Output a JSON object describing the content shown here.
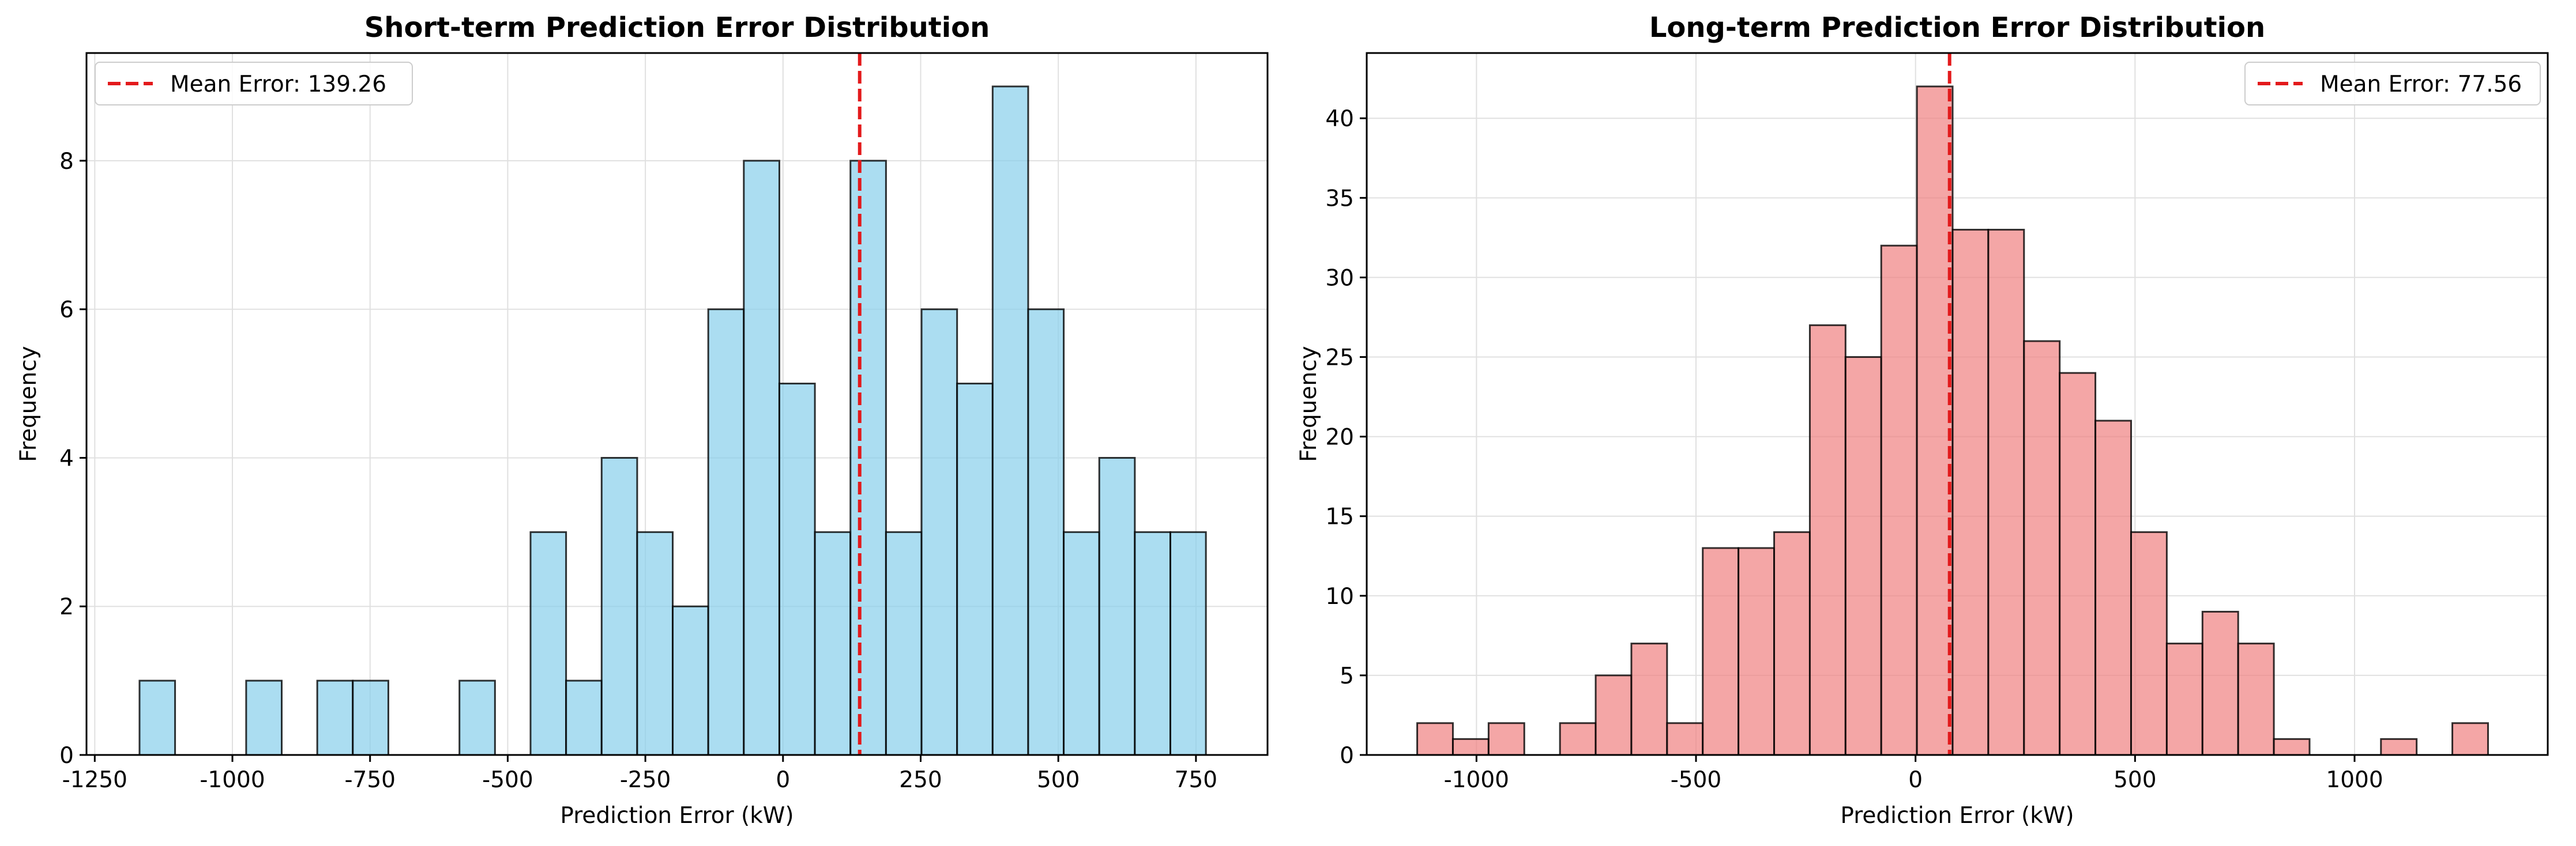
{
  "chart_data": [
    {
      "type": "bar",
      "subtype": "histogram",
      "title": "Short-term Prediction Error Distribution",
      "xlabel": "Prediction Error (kW)",
      "ylabel": "Frequency",
      "xlim": [
        -1265,
        880
      ],
      "ylim": [
        0,
        9.45
      ],
      "xticks": [
        -1250,
        -1000,
        -750,
        -500,
        -250,
        0,
        250,
        500,
        750
      ],
      "xtick_labels": [
        "-1250",
        "-1000",
        "-750",
        "-500",
        "-250",
        "0",
        "250",
        "500",
        "750"
      ],
      "yticks": [
        0,
        2,
        4,
        6,
        8
      ],
      "ytick_labels": [
        "0",
        "2",
        "4",
        "6",
        "8"
      ],
      "grid": true,
      "bar_color": "#87CEEB",
      "edge_color": "#000000",
      "bin_start": -1168.7,
      "bin_width": 64.56,
      "values": [
        1,
        0,
        0,
        1,
        0,
        1,
        1,
        0,
        0,
        1,
        0,
        3,
        1,
        4,
        3,
        2,
        6,
        8,
        5,
        3,
        8,
        3,
        6,
        5,
        9,
        6,
        3,
        4,
        3,
        3
      ],
      "mean": {
        "value": 139.26,
        "label": "Mean Error: 139.26",
        "color": "#e31a1c"
      },
      "legend_position": "upper-left"
    },
    {
      "type": "bar",
      "subtype": "histogram",
      "title": "Long-term Prediction Error Distribution",
      "xlabel": "Prediction Error (kW)",
      "ylabel": "Frequency",
      "xlim": [
        -1250,
        1440
      ],
      "ylim": [
        0,
        44.1
      ],
      "xticks": [
        -1000,
        -500,
        0,
        500,
        1000
      ],
      "xtick_labels": [
        "-1000",
        "-500",
        "0",
        "500",
        "1000"
      ],
      "yticks": [
        0,
        5,
        10,
        15,
        20,
        25,
        30,
        35,
        40
      ],
      "ytick_labels": [
        "0",
        "5",
        "10",
        "15",
        "20",
        "25",
        "30",
        "35",
        "40"
      ],
      "grid": true,
      "bar_color": "#F08080",
      "edge_color": "#000000",
      "bin_start": -1135,
      "bin_width": 81.3,
      "values": [
        2,
        1,
        2,
        0,
        2,
        5,
        7,
        2,
        13,
        13,
        14,
        27,
        25,
        32,
        42,
        33,
        33,
        26,
        24,
        21,
        14,
        7,
        9,
        7,
        1,
        0,
        0,
        1,
        0,
        2
      ],
      "mean": {
        "value": 77.56,
        "label": "Mean Error: 77.56",
        "color": "#e31a1c"
      },
      "legend_position": "upper-right"
    }
  ]
}
